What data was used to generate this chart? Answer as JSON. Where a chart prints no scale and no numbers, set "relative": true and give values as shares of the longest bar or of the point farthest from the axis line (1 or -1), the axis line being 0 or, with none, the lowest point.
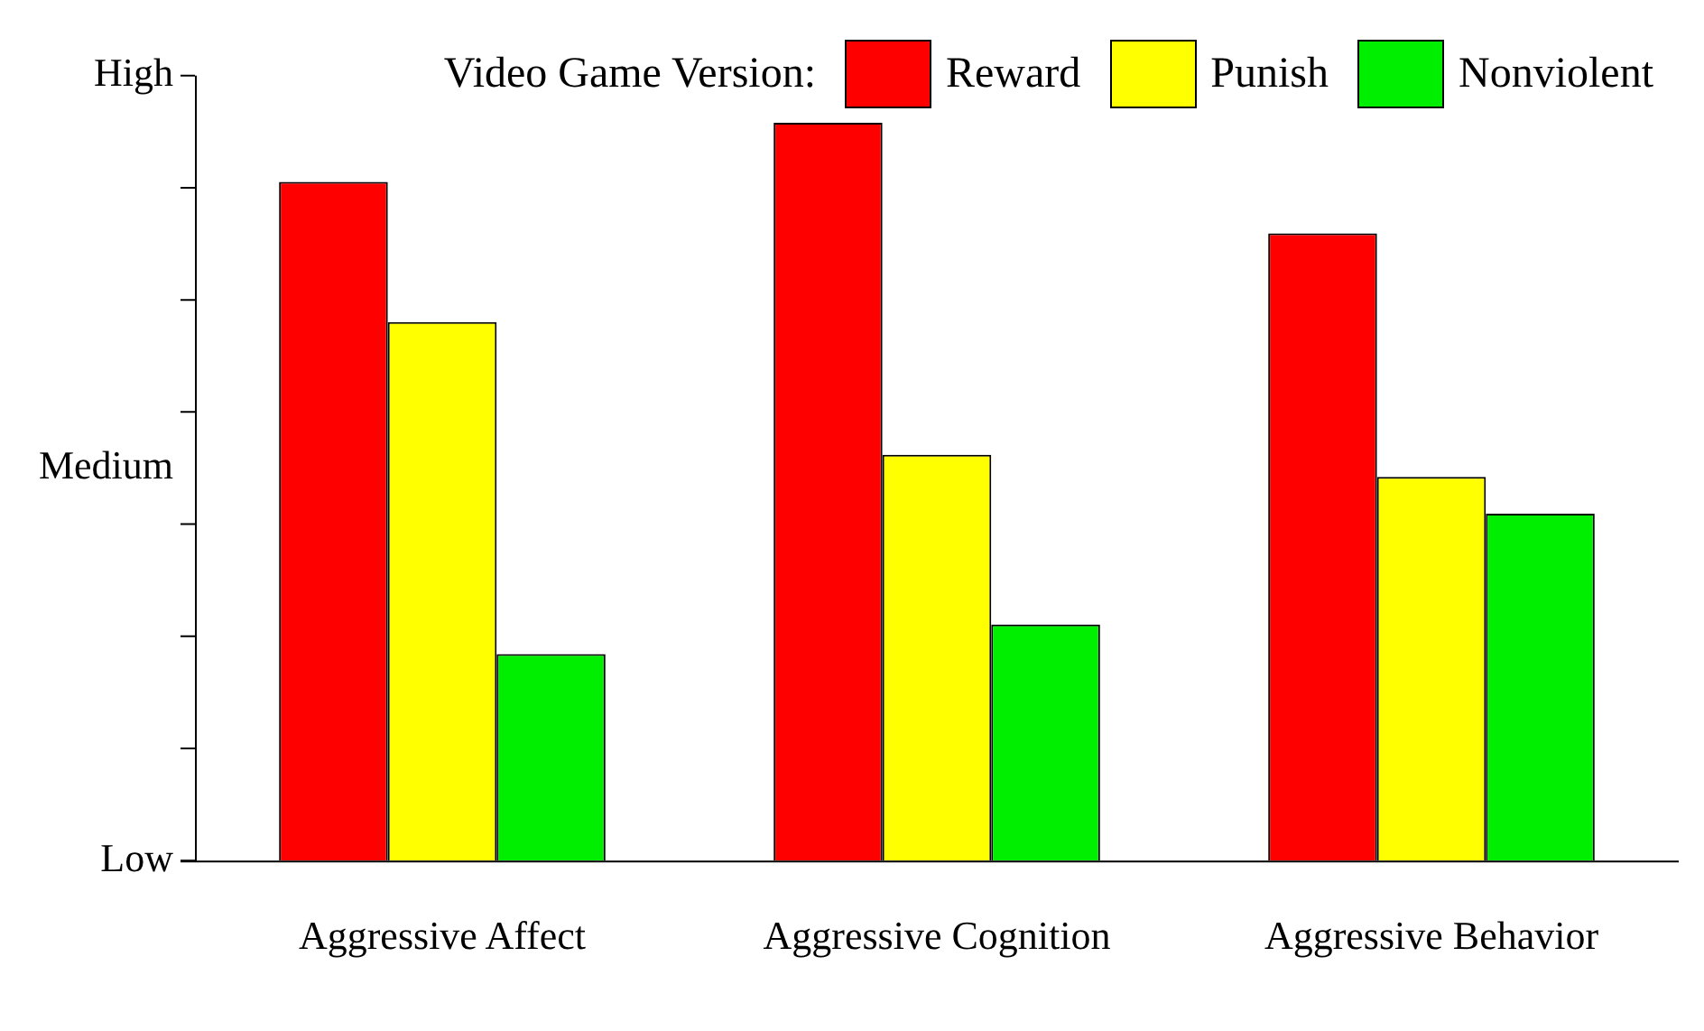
{
  "chart_data": {
    "type": "bar",
    "legend_title": "Video Game Version:",
    "categories": [
      "Aggressive Affect",
      "Aggressive Cognition",
      "Aggressive Behavior"
    ],
    "series": [
      {
        "name": "Reward",
        "color": "#ff0000",
        "values": [
          0.92,
          1,
          0.85
        ]
      },
      {
        "name": "Punish",
        "color": "#ffff00",
        "values": [
          0.73,
          0.55,
          0.52
        ]
      },
      {
        "name": "Nonviolent",
        "color": "#00ee00",
        "values": [
          0.28,
          0.32,
          0.47
        ]
      }
    ],
    "relative": true,
    "annotations": [
      "Low",
      "Medium",
      "High"
    ],
    "grid": false,
    "legend": "top right"
  }
}
